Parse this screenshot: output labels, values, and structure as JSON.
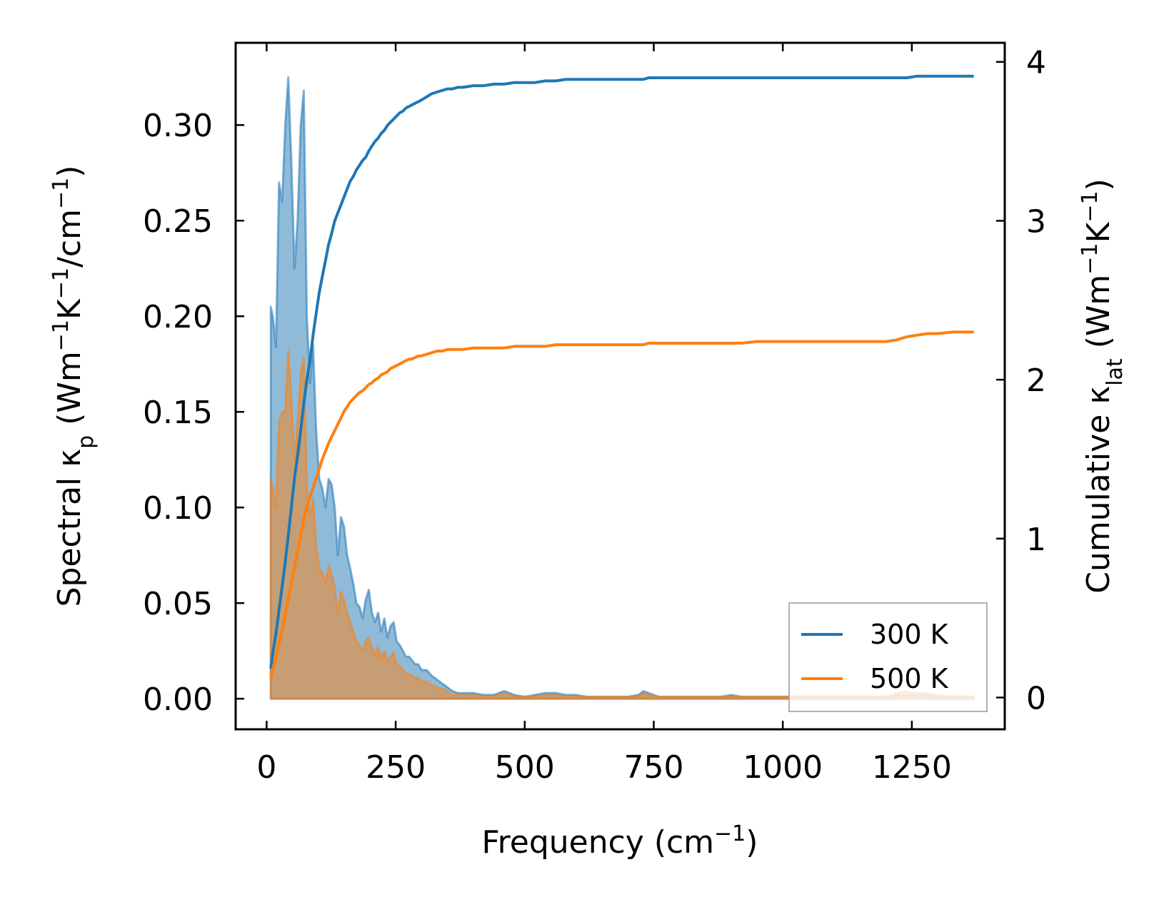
{
  "chart_data": {
    "type": "area",
    "x": [
      8,
      12,
      18,
      24,
      30,
      36,
      42,
      48,
      54,
      60,
      66,
      72,
      78,
      84,
      90,
      96,
      102,
      108,
      114,
      120,
      126,
      132,
      138,
      144,
      150,
      156,
      162,
      168,
      174,
      180,
      186,
      192,
      198,
      204,
      210,
      216,
      222,
      228,
      234,
      240,
      246,
      252,
      258,
      264,
      270,
      276,
      282,
      288,
      294,
      300,
      310,
      320,
      330,
      340,
      350,
      360,
      370,
      380,
      400,
      420,
      440,
      460,
      480,
      500,
      520,
      540,
      560,
      580,
      600,
      620,
      640,
      660,
      680,
      700,
      720,
      730,
      740,
      760,
      800,
      850,
      880,
      900,
      920,
      950,
      1000,
      1050,
      1100,
      1150,
      1200,
      1220,
      1240,
      1260,
      1280,
      1300,
      1330,
      1370
    ],
    "series": [
      {
        "name": "300 K",
        "color": "#1f77b4",
        "spectral": [
          0.205,
          0.2,
          0.184,
          0.27,
          0.26,
          0.3,
          0.325,
          0.28,
          0.225,
          0.25,
          0.3,
          0.318,
          0.2,
          0.165,
          0.185,
          0.14,
          0.115,
          0.11,
          0.1,
          0.115,
          0.112,
          0.1,
          0.075,
          0.095,
          0.09,
          0.075,
          0.068,
          0.06,
          0.05,
          0.048,
          0.042,
          0.052,
          0.057,
          0.045,
          0.04,
          0.045,
          0.035,
          0.042,
          0.032,
          0.038,
          0.04,
          0.03,
          0.028,
          0.025,
          0.022,
          0.022,
          0.02,
          0.018,
          0.018,
          0.015,
          0.015,
          0.012,
          0.01,
          0.008,
          0.006,
          0.004,
          0.003,
          0.003,
          0.003,
          0.002,
          0.002,
          0.004,
          0.002,
          0.001,
          0.002,
          0.003,
          0.003,
          0.002,
          0.002,
          0.001,
          0.001,
          0.001,
          0.001,
          0.001,
          0.002,
          0.004,
          0.003,
          0.001,
          0.001,
          0.001,
          0.001,
          0.002,
          0.001,
          0.001,
          0.001,
          0.001,
          0.001,
          0.001,
          0.001,
          0.002,
          0.002,
          0.002,
          0.002,
          0.001,
          0.001,
          0.001
        ],
        "cumulative": [
          0.18,
          0.28,
          0.4,
          0.55,
          0.7,
          0.85,
          1.02,
          1.2,
          1.38,
          1.52,
          1.68,
          1.85,
          2.0,
          2.12,
          2.28,
          2.42,
          2.55,
          2.65,
          2.75,
          2.85,
          2.92,
          3.0,
          3.05,
          3.1,
          3.15,
          3.2,
          3.25,
          3.28,
          3.32,
          3.35,
          3.38,
          3.4,
          3.44,
          3.47,
          3.5,
          3.52,
          3.55,
          3.57,
          3.6,
          3.62,
          3.64,
          3.66,
          3.68,
          3.69,
          3.71,
          3.72,
          3.73,
          3.74,
          3.75,
          3.76,
          3.78,
          3.8,
          3.81,
          3.82,
          3.83,
          3.83,
          3.84,
          3.84,
          3.85,
          3.85,
          3.86,
          3.86,
          3.87,
          3.87,
          3.87,
          3.88,
          3.88,
          3.89,
          3.89,
          3.89,
          3.89,
          3.89,
          3.89,
          3.89,
          3.89,
          3.89,
          3.9,
          3.9,
          3.9,
          3.9,
          3.9,
          3.9,
          3.9,
          3.9,
          3.9,
          3.9,
          3.9,
          3.9,
          3.9,
          3.9,
          3.9,
          3.91,
          3.91,
          3.91,
          3.91,
          3.91
        ]
      },
      {
        "name": "500 K",
        "color": "#ff7f0e",
        "spectral": [
          0.115,
          0.11,
          0.1,
          0.145,
          0.15,
          0.15,
          0.182,
          0.155,
          0.125,
          0.145,
          0.17,
          0.178,
          0.11,
          0.095,
          0.105,
          0.08,
          0.068,
          0.066,
          0.06,
          0.07,
          0.065,
          0.058,
          0.045,
          0.056,
          0.052,
          0.045,
          0.04,
          0.035,
          0.03,
          0.028,
          0.025,
          0.03,
          0.032,
          0.027,
          0.023,
          0.027,
          0.021,
          0.025,
          0.019,
          0.022,
          0.024,
          0.018,
          0.017,
          0.015,
          0.013,
          0.013,
          0.012,
          0.011,
          0.011,
          0.009,
          0.009,
          0.007,
          0.006,
          0.005,
          0.004,
          0.002,
          0.002,
          0.002,
          0.002,
          0.001,
          0.001,
          0.003,
          0.001,
          0.001,
          0.001,
          0.002,
          0.002,
          0.001,
          0.001,
          0.001,
          0.001,
          0.001,
          0.001,
          0.001,
          0.001,
          0.003,
          0.002,
          0.001,
          0.001,
          0.001,
          0.001,
          0.001,
          0.001,
          0.001,
          0.001,
          0.001,
          0.001,
          0.001,
          0.001,
          0.003,
          0.004,
          0.003,
          0.003,
          0.002,
          0.001,
          0.001
        ],
        "cumulative": [
          0.12,
          0.18,
          0.25,
          0.34,
          0.42,
          0.52,
          0.62,
          0.72,
          0.82,
          0.92,
          1.02,
          1.12,
          1.2,
          1.26,
          1.32,
          1.38,
          1.44,
          1.5,
          1.55,
          1.6,
          1.64,
          1.68,
          1.72,
          1.76,
          1.8,
          1.83,
          1.86,
          1.88,
          1.9,
          1.92,
          1.93,
          1.95,
          1.97,
          1.98,
          2.0,
          2.01,
          2.03,
          2.04,
          2.05,
          2.07,
          2.08,
          2.09,
          2.1,
          2.11,
          2.12,
          2.13,
          2.13,
          2.14,
          2.15,
          2.15,
          2.16,
          2.17,
          2.18,
          2.18,
          2.19,
          2.19,
          2.19,
          2.19,
          2.2,
          2.2,
          2.2,
          2.2,
          2.21,
          2.21,
          2.21,
          2.21,
          2.22,
          2.22,
          2.22,
          2.22,
          2.22,
          2.22,
          2.22,
          2.22,
          2.22,
          2.22,
          2.23,
          2.23,
          2.23,
          2.23,
          2.23,
          2.23,
          2.23,
          2.24,
          2.24,
          2.24,
          2.24,
          2.24,
          2.24,
          2.25,
          2.27,
          2.28,
          2.29,
          2.29,
          2.3,
          2.3
        ]
      }
    ],
    "xlabel": "Frequency (cm⁻¹)",
    "ylabel_left": "Spectral κₚ (Wm⁻¹K⁻¹/cm⁻¹)",
    "ylabel_right": "Cumulative κₗₐₜ (Wm⁻¹K⁻¹)",
    "xlim": [
      -60,
      1430
    ],
    "ylim_left": [
      -0.016,
      0.343
    ],
    "ylim_right": [
      -0.2,
      4.12
    ],
    "xticks": [
      0,
      250,
      500,
      750,
      1000,
      1250
    ],
    "xtick_labels": [
      "0",
      "250",
      "500",
      "750",
      "1000",
      "1250"
    ],
    "yticks_left": [
      0.0,
      0.05,
      0.1,
      0.15,
      0.2,
      0.25,
      0.3
    ],
    "ytick_labels_left": [
      "0.00",
      "0.05",
      "0.10",
      "0.15",
      "0.20",
      "0.25",
      "0.30"
    ],
    "yticks_right": [
      0,
      1,
      2,
      3,
      4
    ],
    "ytick_labels_right": [
      "0",
      "1",
      "2",
      "3",
      "4"
    ],
    "legend": {
      "position": "lower-right",
      "entries": [
        {
          "label": "300 K",
          "color": "#1f77b4"
        },
        {
          "label": "500 K",
          "color": "#ff7f0e"
        }
      ]
    }
  }
}
